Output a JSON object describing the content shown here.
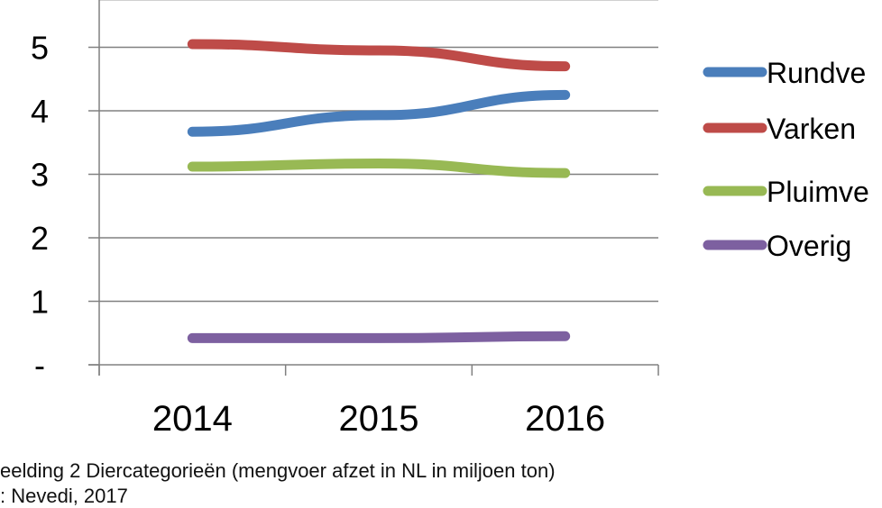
{
  "chart_data": {
    "type": "line",
    "categories": [
      "2014",
      "2015",
      "2016"
    ],
    "ylim": [
      0,
      5.7
    ],
    "yticks": [
      {
        "value": 0,
        "label": "-"
      },
      {
        "value": 1,
        "label": "1"
      },
      {
        "value": 2,
        "label": "2"
      },
      {
        "value": 3,
        "label": "3"
      },
      {
        "value": 4,
        "label": "4"
      },
      {
        "value": 5,
        "label": "5"
      }
    ],
    "grid": true,
    "legend": "right",
    "series": [
      {
        "name": "Rundve",
        "color": "#4a7ebb",
        "values": [
          3.67,
          3.93,
          4.25
        ]
      },
      {
        "name": "Varken",
        "color": "#be4b48",
        "values": [
          5.05,
          4.95,
          4.7
        ]
      },
      {
        "name": "Pluimve",
        "color": "#98b954",
        "values": [
          3.12,
          3.17,
          3.02
        ]
      },
      {
        "name": "Overig",
        "color": "#7d60a0",
        "values": [
          0.42,
          0.42,
          0.45
        ]
      }
    ],
    "caption_line1": "eelding  2 Diercategorieën  (mengvoer  afzet  in NL  in miljoen ton)",
    "caption_line2": ": Nevedi, 2017"
  }
}
